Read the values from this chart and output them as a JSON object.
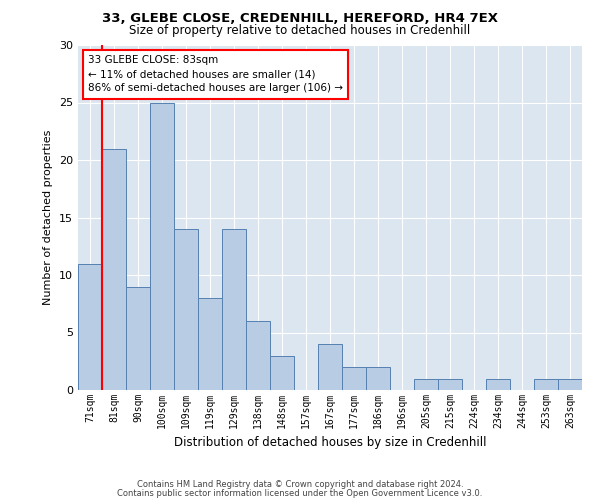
{
  "title1": "33, GLEBE CLOSE, CREDENHILL, HEREFORD, HR4 7EX",
  "title2": "Size of property relative to detached houses in Credenhill",
  "xlabel": "Distribution of detached houses by size in Credenhill",
  "ylabel": "Number of detached properties",
  "categories": [
    "71sqm",
    "81sqm",
    "90sqm",
    "100sqm",
    "109sqm",
    "119sqm",
    "129sqm",
    "138sqm",
    "148sqm",
    "157sqm",
    "167sqm",
    "177sqm",
    "186sqm",
    "196sqm",
    "205sqm",
    "215sqm",
    "224sqm",
    "234sqm",
    "244sqm",
    "253sqm",
    "263sqm"
  ],
  "values": [
    11,
    21,
    9,
    25,
    14,
    8,
    14,
    6,
    3,
    0,
    4,
    2,
    2,
    0,
    1,
    1,
    0,
    1,
    0,
    1,
    1
  ],
  "bar_color": "#b8cce4",
  "bar_edge_color": "#5580b0",
  "ylim": [
    0,
    30
  ],
  "yticks": [
    0,
    5,
    10,
    15,
    20,
    25,
    30
  ],
  "annotation_text": "33 GLEBE CLOSE: 83sqm\n← 11% of detached houses are smaller (14)\n86% of semi-detached houses are larger (106) →",
  "annotation_box_color": "white",
  "annotation_box_edge_color": "red",
  "vline_color": "red",
  "footer1": "Contains HM Land Registry data © Crown copyright and database right 2024.",
  "footer2": "Contains public sector information licensed under the Open Government Licence v3.0.",
  "bg_color": "#dce6f1"
}
